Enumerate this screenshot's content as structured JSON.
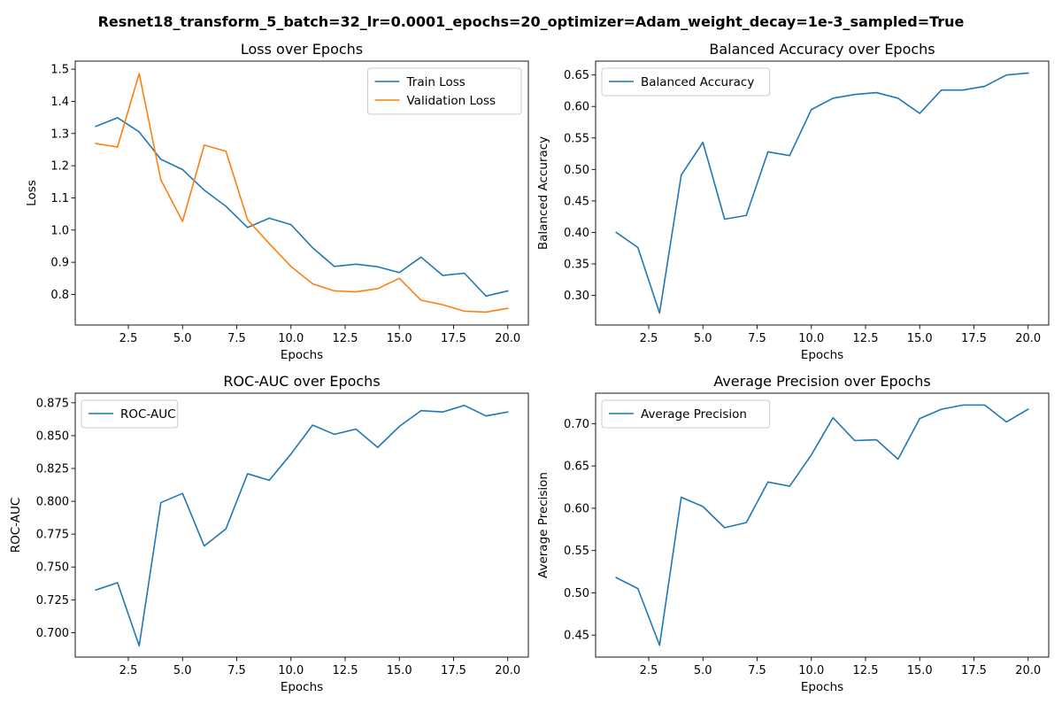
{
  "figure": {
    "suptitle": "Resnet18_transform_5_batch=32_lr=0.0001_epochs=20_optimizer=Adam_weight_decay=1e-3_sampled=True",
    "colors": {
      "blue": "#1f77b4",
      "orange": "#ff7f0e"
    }
  },
  "chart_data": [
    {
      "type": "line",
      "title": "Loss over Epochs",
      "xlabel": "Epochs",
      "ylabel": "Loss",
      "x": [
        1,
        2,
        3,
        4,
        5,
        6,
        7,
        8,
        9,
        10,
        11,
        12,
        13,
        14,
        15,
        16,
        17,
        18,
        19,
        20
      ],
      "xlim": [
        0.05,
        20.95
      ],
      "ylim": [
        0.705,
        1.525
      ],
      "xticks": [
        2.5,
        5.0,
        7.5,
        10.0,
        12.5,
        15.0,
        17.5,
        20.0
      ],
      "xtick_labels": [
        "2.5",
        "5.0",
        "7.5",
        "10.0",
        "12.5",
        "15.0",
        "17.5",
        "20.0"
      ],
      "yticks": [
        0.8,
        0.9,
        1.0,
        1.1,
        1.2,
        1.3,
        1.4,
        1.5
      ],
      "ytick_labels": [
        "0.8",
        "0.9",
        "1.0",
        "1.1",
        "1.2",
        "1.3",
        "1.4",
        "1.5"
      ],
      "legend_position": "top-right",
      "grid": false,
      "series": [
        {
          "name": "Train Loss",
          "color": "#1f77b4",
          "values": [
            1.322,
            1.349,
            1.305,
            1.22,
            1.188,
            1.124,
            1.074,
            1.008,
            1.037,
            1.017,
            0.945,
            0.887,
            0.894,
            0.886,
            0.868,
            0.916,
            0.859,
            0.866,
            0.795,
            0.811
          ]
        },
        {
          "name": "Validation Loss",
          "color": "#ff7f0e",
          "values": [
            1.269,
            1.258,
            1.486,
            1.156,
            1.027,
            1.264,
            1.245,
            1.032,
            0.958,
            0.887,
            0.833,
            0.811,
            0.808,
            0.818,
            0.85,
            0.782,
            0.768,
            0.748,
            0.745,
            0.757
          ]
        }
      ]
    },
    {
      "type": "line",
      "title": "Balanced Accuracy over Epochs",
      "xlabel": "Epochs",
      "ylabel": "Balanced Accuracy",
      "x": [
        1,
        2,
        3,
        4,
        5,
        6,
        7,
        8,
        9,
        10,
        11,
        12,
        13,
        14,
        15,
        16,
        17,
        18,
        19,
        20
      ],
      "xlim": [
        0.05,
        20.95
      ],
      "ylim": [
        0.253,
        0.672
      ],
      "xticks": [
        2.5,
        5.0,
        7.5,
        10.0,
        12.5,
        15.0,
        17.5,
        20.0
      ],
      "xtick_labels": [
        "2.5",
        "5.0",
        "7.5",
        "10.0",
        "12.5",
        "15.0",
        "17.5",
        "20.0"
      ],
      "yticks": [
        0.3,
        0.35,
        0.4,
        0.45,
        0.5,
        0.55,
        0.6,
        0.65
      ],
      "ytick_labels": [
        "0.30",
        "0.35",
        "0.40",
        "0.45",
        "0.50",
        "0.55",
        "0.60",
        "0.65"
      ],
      "legend_position": "top-left",
      "grid": false,
      "series": [
        {
          "name": "Balanced Accuracy",
          "color": "#1f77b4",
          "values": [
            0.4,
            0.376,
            0.272,
            0.491,
            0.543,
            0.421,
            0.427,
            0.528,
            0.522,
            0.595,
            0.613,
            0.619,
            0.622,
            0.613,
            0.589,
            0.626,
            0.626,
            0.632,
            0.65,
            0.653
          ]
        }
      ]
    },
    {
      "type": "line",
      "title": "ROC-AUC over Epochs",
      "xlabel": "Epochs",
      "ylabel": "ROC-AUC",
      "x": [
        1,
        2,
        3,
        4,
        5,
        6,
        7,
        8,
        9,
        10,
        11,
        12,
        13,
        14,
        15,
        16,
        17,
        18,
        19,
        20
      ],
      "xlim": [
        0.05,
        20.95
      ],
      "ylim": [
        0.6814,
        0.8823
      ],
      "xticks": [
        2.5,
        5.0,
        7.5,
        10.0,
        12.5,
        15.0,
        17.5,
        20.0
      ],
      "xtick_labels": [
        "2.5",
        "5.0",
        "7.5",
        "10.0",
        "12.5",
        "15.0",
        "17.5",
        "20.0"
      ],
      "yticks": [
        0.7,
        0.725,
        0.75,
        0.775,
        0.8,
        0.825,
        0.85,
        0.875
      ],
      "ytick_labels": [
        "0.700",
        "0.725",
        "0.750",
        "0.775",
        "0.800",
        "0.825",
        "0.850",
        "0.875"
      ],
      "legend_position": "top-left",
      "grid": false,
      "series": [
        {
          "name": "ROC-AUC",
          "color": "#1f77b4",
          "values": [
            0.7325,
            0.738,
            0.69,
            0.799,
            0.806,
            0.766,
            0.779,
            0.821,
            0.816,
            0.836,
            0.858,
            0.851,
            0.855,
            0.841,
            0.857,
            0.869,
            0.868,
            0.873,
            0.865,
            0.868
          ]
        }
      ]
    },
    {
      "type": "line",
      "title": "Average Precision over Epochs",
      "xlabel": "Epochs",
      "ylabel": "Average Precision",
      "x": [
        1,
        2,
        3,
        4,
        5,
        6,
        7,
        8,
        9,
        10,
        11,
        12,
        13,
        14,
        15,
        16,
        17,
        18,
        19,
        20
      ],
      "xlim": [
        0.05,
        20.95
      ],
      "ylim": [
        0.424,
        0.736
      ],
      "xticks": [
        2.5,
        5.0,
        7.5,
        10.0,
        12.5,
        15.0,
        17.5,
        20.0
      ],
      "xtick_labels": [
        "2.5",
        "5.0",
        "7.5",
        "10.0",
        "12.5",
        "15.0",
        "17.5",
        "20.0"
      ],
      "yticks": [
        0.45,
        0.5,
        0.55,
        0.6,
        0.65,
        0.7
      ],
      "ytick_labels": [
        "0.45",
        "0.50",
        "0.55",
        "0.60",
        "0.65",
        "0.70"
      ],
      "legend_position": "top-left",
      "grid": false,
      "series": [
        {
          "name": "Average Precision",
          "color": "#1f77b4",
          "values": [
            0.518,
            0.505,
            0.438,
            0.613,
            0.602,
            0.577,
            0.583,
            0.631,
            0.626,
            0.663,
            0.707,
            0.68,
            0.681,
            0.658,
            0.706,
            0.717,
            0.722,
            0.722,
            0.702,
            0.717
          ]
        }
      ]
    }
  ]
}
